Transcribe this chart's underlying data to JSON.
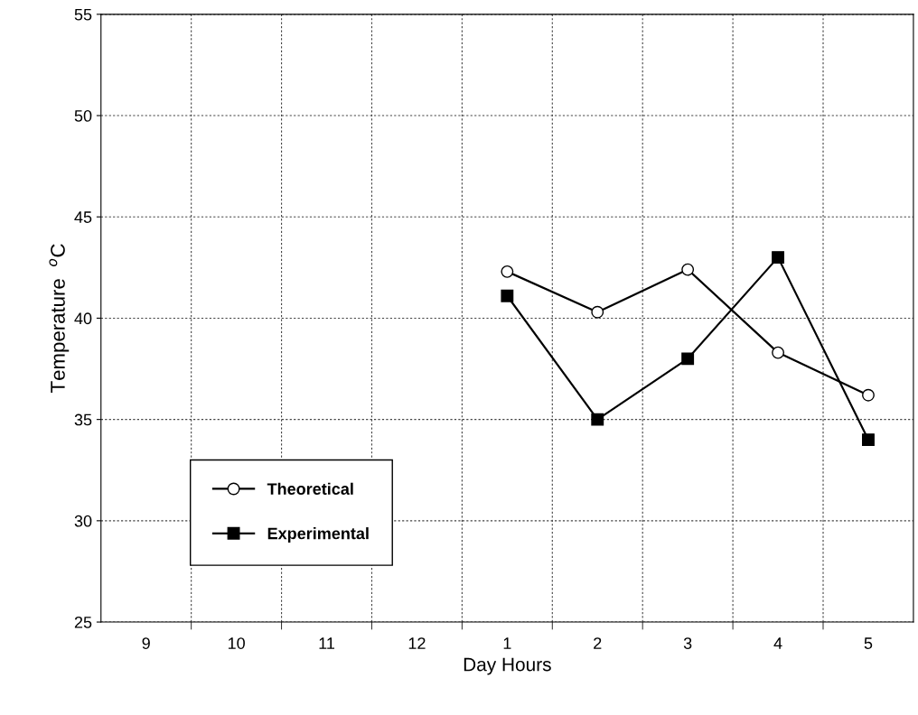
{
  "chart_data": {
    "type": "line",
    "xlabel": "Day Hours",
    "ylabel": "Temperature  $^{o}$C",
    "categories": [
      "9",
      "10",
      "11",
      "12",
      "1",
      "2",
      "3",
      "4",
      "5"
    ],
    "series": [
      {
        "name": "Theoretical",
        "color": "#000000",
        "marker": "circle",
        "values": [
          null,
          null,
          null,
          null,
          42.3,
          40.3,
          42.4,
          38.3,
          36.2
        ]
      },
      {
        "name": "Experimental",
        "color": "#000000",
        "marker": "square",
        "values": [
          null,
          null,
          null,
          null,
          41.1,
          35.0,
          38.0,
          43.0,
          34.0
        ]
      }
    ],
    "ylim": [
      25,
      55
    ],
    "yticks": [
      25,
      30,
      35,
      40,
      45,
      50,
      55
    ],
    "grid": true,
    "legend": "bottom left",
    "line_style": "solid"
  }
}
